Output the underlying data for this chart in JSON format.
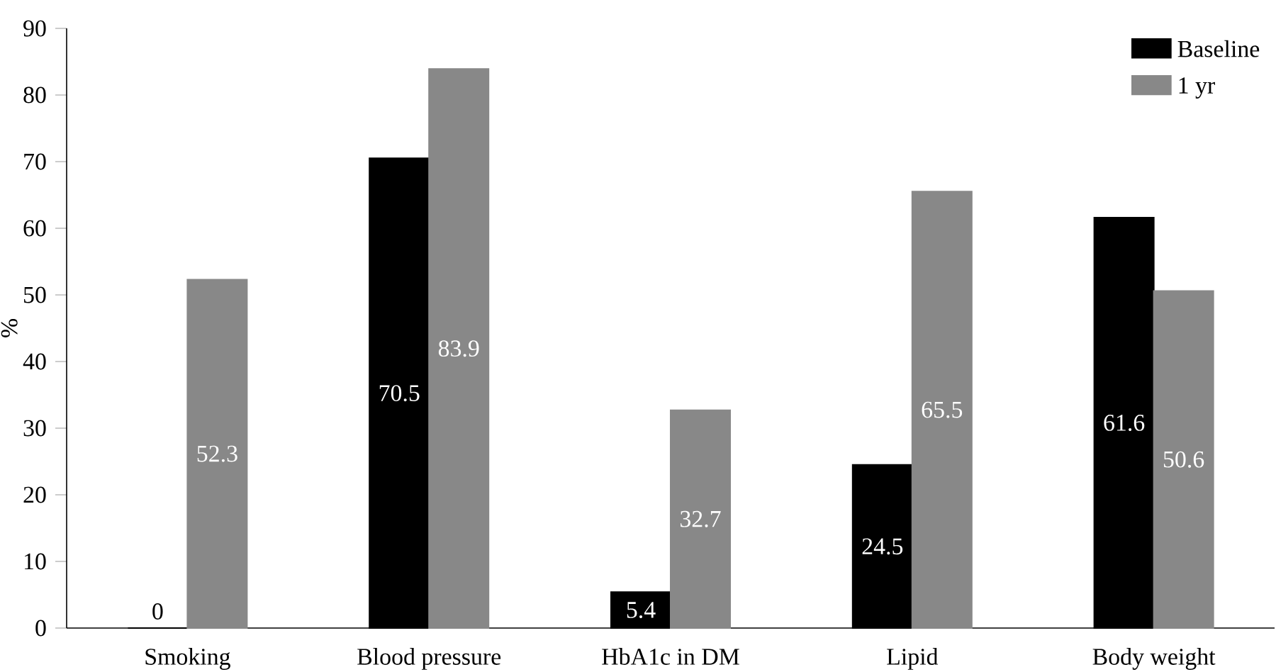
{
  "chart_data": {
    "type": "bar",
    "ylabel": "%",
    "categories": [
      "Smoking",
      "Blood pressure",
      "HbA1c in DM",
      "Lipid",
      "Body weight"
    ],
    "series": [
      {
        "name": "Baseline",
        "color": "#000000",
        "values": [
          0,
          70.5,
          5.4,
          24.5,
          61.6
        ]
      },
      {
        "name": "1 yr",
        "color": "#888888",
        "values": [
          52.3,
          83.9,
          32.7,
          65.5,
          50.6
        ]
      }
    ],
    "ylim": [
      0,
      90
    ],
    "yticks": [
      0,
      10,
      20,
      30,
      40,
      50,
      60,
      70,
      80,
      90
    ],
    "data_labels": true,
    "legend": "top right",
    "grid": false
  }
}
